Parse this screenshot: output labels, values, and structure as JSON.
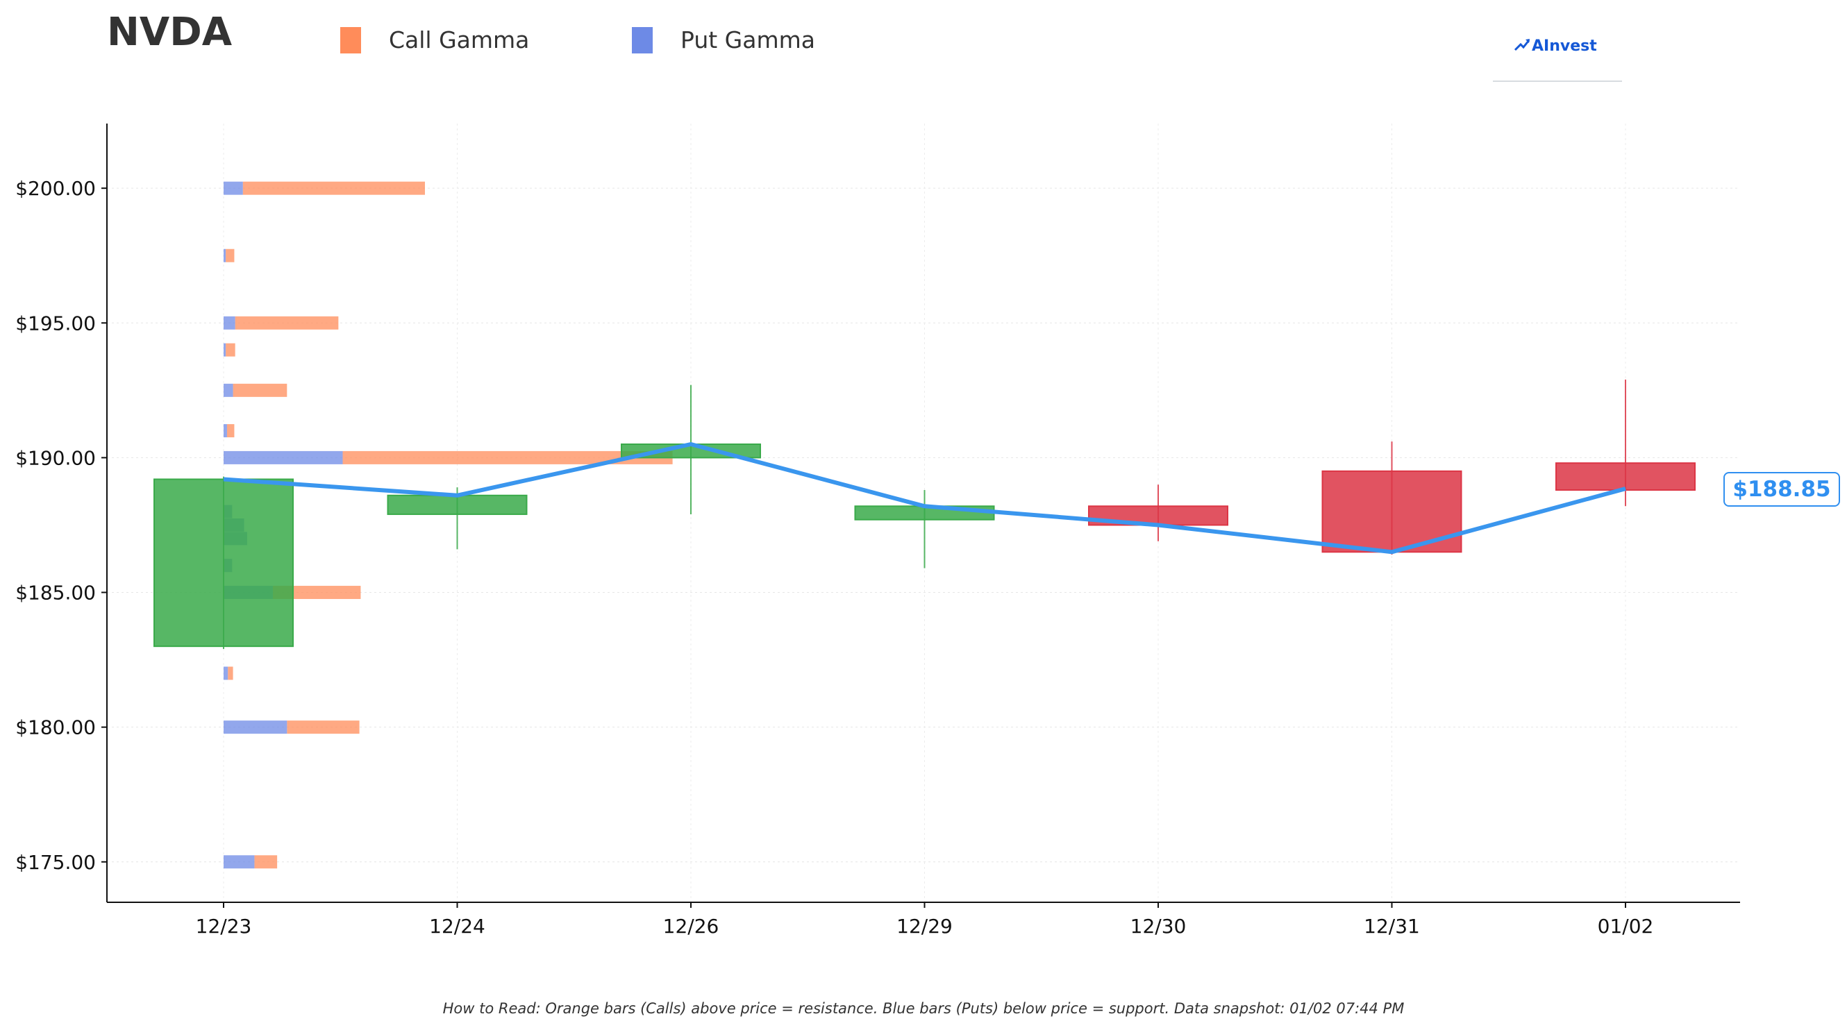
{
  "header": {
    "ticker": "NVDA",
    "legend": [
      {
        "label": "Call Gamma",
        "color": "#ff8c5a"
      },
      {
        "label": "Put Gamma",
        "color": "#6d8ae6"
      }
    ],
    "brand": "AInvest"
  },
  "price_badge": "$188.85",
  "footnote": "How to Read: Orange bars (Calls) above price = resistance. Blue bars (Puts) below price = support. Data snapshot: 01/02 07:44 PM",
  "chart_data": {
    "type": "candlestick",
    "categories": [
      "12/23",
      "12/24",
      "12/26",
      "12/29",
      "12/30",
      "12/31",
      "01/02"
    ],
    "ylim": [
      173.5,
      202.4
    ],
    "y_ticks": [
      175,
      180,
      185,
      190,
      195,
      200
    ],
    "y_tick_labels": [
      "$175.00",
      "$180.00",
      "$185.00",
      "$190.00",
      "$195.00",
      "$200.00"
    ],
    "grid": true,
    "legend_position": "top",
    "candles": [
      {
        "date": "12/23",
        "open": 183.0,
        "high": 189.3,
        "low": 182.9,
        "close": 189.2
      },
      {
        "date": "12/24",
        "open": 187.9,
        "high": 188.9,
        "low": 186.6,
        "close": 188.6
      },
      {
        "date": "12/26",
        "open": 190.0,
        "high": 192.7,
        "low": 187.9,
        "close": 190.5
      },
      {
        "date": "12/29",
        "open": 187.7,
        "high": 188.8,
        "low": 185.9,
        "close": 188.2
      },
      {
        "date": "12/30",
        "open": 188.2,
        "high": 189.0,
        "low": 186.9,
        "close": 187.5
      },
      {
        "date": "12/31",
        "open": 189.5,
        "high": 190.6,
        "low": 186.4,
        "close": 186.5
      },
      {
        "date": "01/02",
        "open": 189.8,
        "high": 192.9,
        "low": 188.2,
        "close": 188.8
      }
    ],
    "close_line": {
      "color": "#3a96ee",
      "values": [
        189.2,
        188.6,
        190.5,
        188.2,
        187.5,
        186.5,
        188.85
      ]
    },
    "gamma_bars": [
      {
        "strike": 200,
        "put": 0.45,
        "call": 4.7
      },
      {
        "strike": 197.5,
        "put": 0.05,
        "call": 0.25
      },
      {
        "strike": 195,
        "put": 0.27,
        "call": 2.68
      },
      {
        "strike": 194,
        "put": 0.05,
        "call": 0.27
      },
      {
        "strike": 192.5,
        "put": 0.22,
        "call": 1.48
      },
      {
        "strike": 191,
        "put": 0.08,
        "call": 0.25
      },
      {
        "strike": 190,
        "put": 2.78,
        "call": 10.48
      },
      {
        "strike": 188,
        "put": 0.2,
        "call": 0.2
      },
      {
        "strike": 187.5,
        "put": 0.48,
        "call": 0.48
      },
      {
        "strike": 187,
        "put": 0.55,
        "call": 0.55
      },
      {
        "strike": 186,
        "put": 0.2,
        "call": 0.2
      },
      {
        "strike": 185,
        "put": 1.15,
        "call": 3.2
      },
      {
        "strike": 182,
        "put": 0.1,
        "call": 0.22
      },
      {
        "strike": 180,
        "put": 1.48,
        "call": 3.17
      },
      {
        "strike": 175,
        "put": 0.72,
        "call": 1.25
      }
    ],
    "up_color": "#3aaa4a",
    "down_color": "#dc3545",
    "call_color": "#ff8c5a",
    "put_color": "#6d8ae6"
  }
}
